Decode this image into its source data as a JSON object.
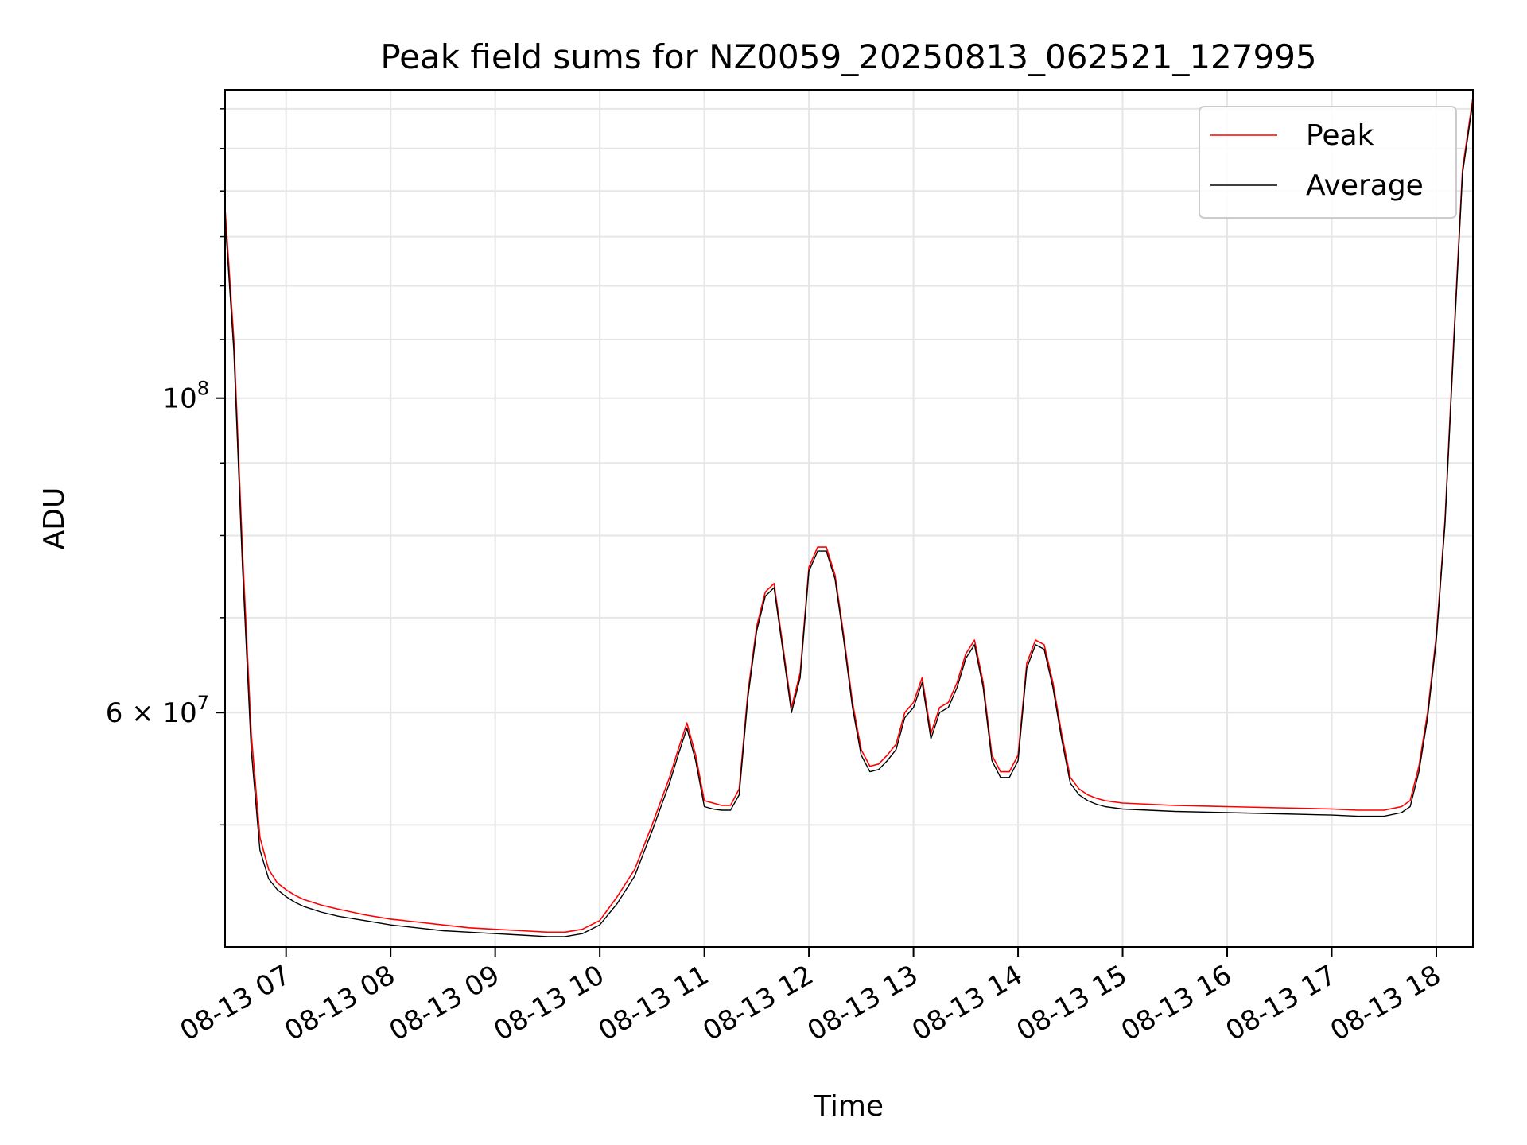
{
  "chart_data": {
    "type": "line",
    "title": "Peak field sums for NZ0059_20250813_062521_127995",
    "xlabel": "Time",
    "ylabel": "ADU",
    "yscale": "log",
    "grid": true,
    "legend": "top-right",
    "x_ticks": [
      "08-13 07",
      "08-13 08",
      "08-13 09",
      "08-13 10",
      "08-13 11",
      "08-13 12",
      "08-13 13",
      "08-13 14",
      "08-13 15",
      "08-13 16",
      "08-13 17",
      "08-13 18"
    ],
    "y_ticks": [
      {
        "value": 100000000,
        "base": "10",
        "exp": "8"
      },
      {
        "value": 60000000,
        "base": "6 × 10",
        "exp": "7"
      }
    ],
    "xlim": [
      "2025-08-13 06:25",
      "2025-08-13 18:21"
    ],
    "ylim": [
      41000000,
      165000000
    ],
    "series": [
      {
        "name": "Peak",
        "color": "#ff0000",
        "x": [
          "06:25",
          "06:30",
          "06:35",
          "06:40",
          "06:45",
          "06:50",
          "06:55",
          "07:00",
          "07:05",
          "07:10",
          "07:20",
          "07:30",
          "07:45",
          "08:00",
          "08:15",
          "08:30",
          "08:45",
          "09:00",
          "09:15",
          "09:30",
          "09:40",
          "09:50",
          "10:00",
          "10:10",
          "10:20",
          "10:30",
          "10:40",
          "10:45",
          "10:50",
          "10:55",
          "11:00",
          "11:05",
          "11:10",
          "11:15",
          "11:20",
          "11:25",
          "11:30",
          "11:35",
          "11:40",
          "11:45",
          "11:50",
          "11:55",
          "12:00",
          "12:05",
          "12:10",
          "12:15",
          "12:20",
          "12:25",
          "12:30",
          "12:35",
          "12:40",
          "12:45",
          "12:50",
          "12:55",
          "13:00",
          "13:05",
          "13:10",
          "13:15",
          "13:20",
          "13:25",
          "13:30",
          "13:35",
          "13:40",
          "13:45",
          "13:50",
          "13:55",
          "14:00",
          "14:05",
          "14:10",
          "14:15",
          "14:20",
          "14:25",
          "14:30",
          "14:35",
          "14:40",
          "14:45",
          "14:50",
          "15:00",
          "15:30",
          "16:00",
          "16:30",
          "17:00",
          "17:15",
          "17:30",
          "17:40",
          "17:45",
          "17:50",
          "17:55",
          "18:00",
          "18:05",
          "18:10",
          "18:15",
          "18:21"
        ],
        "y": [
          136000000,
          110000000,
          78000000,
          58000000,
          49000000,
          46500000,
          45500000,
          45000000,
          44600000,
          44300000,
          43900000,
          43600000,
          43200000,
          42900000,
          42700000,
          42500000,
          42300000,
          42200000,
          42100000,
          42000000,
          42000000,
          42200000,
          42800000,
          44500000,
          46500000,
          50000000,
          54000000,
          56500000,
          59000000,
          56000000,
          52000000,
          51800000,
          51600000,
          51600000,
          53000000,
          62000000,
          69000000,
          73000000,
          74000000,
          67000000,
          60500000,
          64000000,
          76000000,
          78500000,
          78500000,
          75000000,
          68000000,
          61000000,
          56500000,
          55000000,
          55200000,
          56000000,
          57000000,
          60000000,
          61000000,
          63500000,
          58000000,
          60500000,
          61000000,
          63000000,
          66000000,
          67500000,
          63000000,
          56000000,
          54500000,
          54500000,
          56000000,
          65000000,
          67500000,
          67000000,
          63000000,
          58000000,
          54000000,
          53000000,
          52500000,
          52200000,
          52000000,
          51800000,
          51600000,
          51500000,
          51400000,
          51300000,
          51200000,
          51200000,
          51500000,
          52000000,
          55000000,
          60000000,
          68000000,
          82000000,
          110000000,
          145000000,
          163000000
        ]
      },
      {
        "name": "Average",
        "color": "#000000",
        "x": [
          "06:25",
          "06:30",
          "06:35",
          "06:40",
          "06:45",
          "06:50",
          "06:55",
          "07:00",
          "07:05",
          "07:10",
          "07:20",
          "07:30",
          "07:45",
          "08:00",
          "08:15",
          "08:30",
          "08:45",
          "09:00",
          "09:15",
          "09:30",
          "09:40",
          "09:50",
          "10:00",
          "10:10",
          "10:20",
          "10:30",
          "10:40",
          "10:45",
          "10:50",
          "10:55",
          "11:00",
          "11:05",
          "11:10",
          "11:15",
          "11:20",
          "11:25",
          "11:30",
          "11:35",
          "11:40",
          "11:45",
          "11:50",
          "11:55",
          "12:00",
          "12:05",
          "12:10",
          "12:15",
          "12:20",
          "12:25",
          "12:30",
          "12:35",
          "12:40",
          "12:45",
          "12:50",
          "12:55",
          "13:00",
          "13:05",
          "13:10",
          "13:15",
          "13:20",
          "13:25",
          "13:30",
          "13:35",
          "13:40",
          "13:45",
          "13:50",
          "13:55",
          "14:00",
          "14:05",
          "14:10",
          "14:15",
          "14:20",
          "14:25",
          "14:30",
          "14:35",
          "14:40",
          "14:45",
          "14:50",
          "15:00",
          "15:30",
          "16:00",
          "16:30",
          "17:00",
          "17:15",
          "17:30",
          "17:40",
          "17:45",
          "17:50",
          "17:55",
          "18:00",
          "18:05",
          "18:10",
          "18:15",
          "18:21"
        ],
        "y": [
          134000000,
          108000000,
          76000000,
          56500000,
          48000000,
          45800000,
          45000000,
          44500000,
          44100000,
          43800000,
          43400000,
          43100000,
          42800000,
          42500000,
          42300000,
          42100000,
          42000000,
          41900000,
          41800000,
          41700000,
          41700000,
          41900000,
          42500000,
          44000000,
          46000000,
          49500000,
          53500000,
          56000000,
          58500000,
          55500000,
          51500000,
          51300000,
          51200000,
          51200000,
          52500000,
          61500000,
          68500000,
          72500000,
          73500000,
          66500000,
          60000000,
          63500000,
          75500000,
          78000000,
          78000000,
          74500000,
          67500000,
          60500000,
          56000000,
          54500000,
          54700000,
          55500000,
          56500000,
          59500000,
          60500000,
          63000000,
          57500000,
          60000000,
          60500000,
          62500000,
          65500000,
          67000000,
          62500000,
          55500000,
          54000000,
          54000000,
          55500000,
          64500000,
          67000000,
          66500000,
          62500000,
          57500000,
          53500000,
          52500000,
          52000000,
          51700000,
          51500000,
          51300000,
          51100000,
          51000000,
          50900000,
          50800000,
          50700000,
          50700000,
          51000000,
          51500000,
          54500000,
          59500000,
          67500000,
          81500000,
          109000000,
          144000000,
          162000000
        ]
      }
    ]
  }
}
